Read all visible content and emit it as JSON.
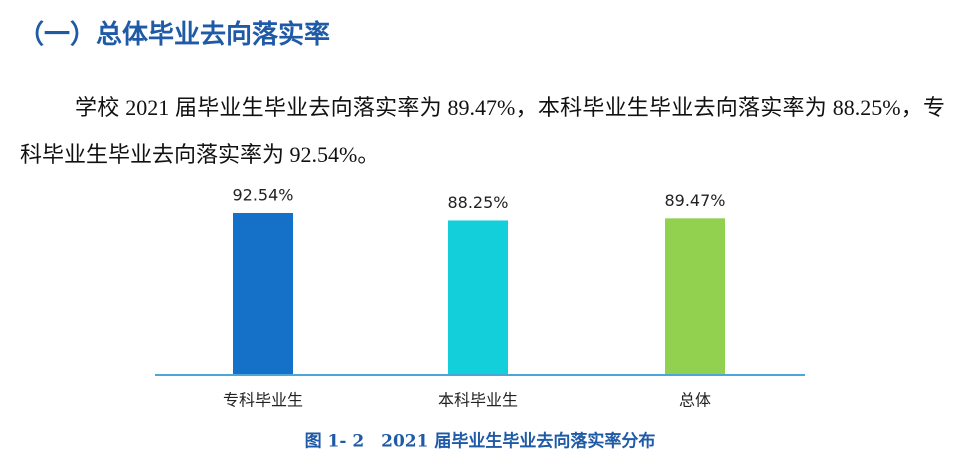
{
  "header": {
    "title": "（一）总体毕业去向落实率"
  },
  "paragraph": "学校 2021 届毕业生毕业去向落实率为 89.47%，本科毕业生毕业去向落实率为 88.25%，专科毕业生毕业去向落实率为 92.54%。",
  "chart_data": {
    "type": "bar",
    "categories": [
      "专科毕业生",
      "本科毕业生",
      "总体"
    ],
    "values": [
      92.54,
      88.25,
      89.47
    ],
    "value_labels": [
      "92.54%",
      "88.25%",
      "89.47%"
    ],
    "colors": [
      "#1570c8",
      "#12cfd9",
      "#92d050"
    ],
    "caption": "图 1- 2　2021 届毕业生毕业去向落实率分布"
  }
}
